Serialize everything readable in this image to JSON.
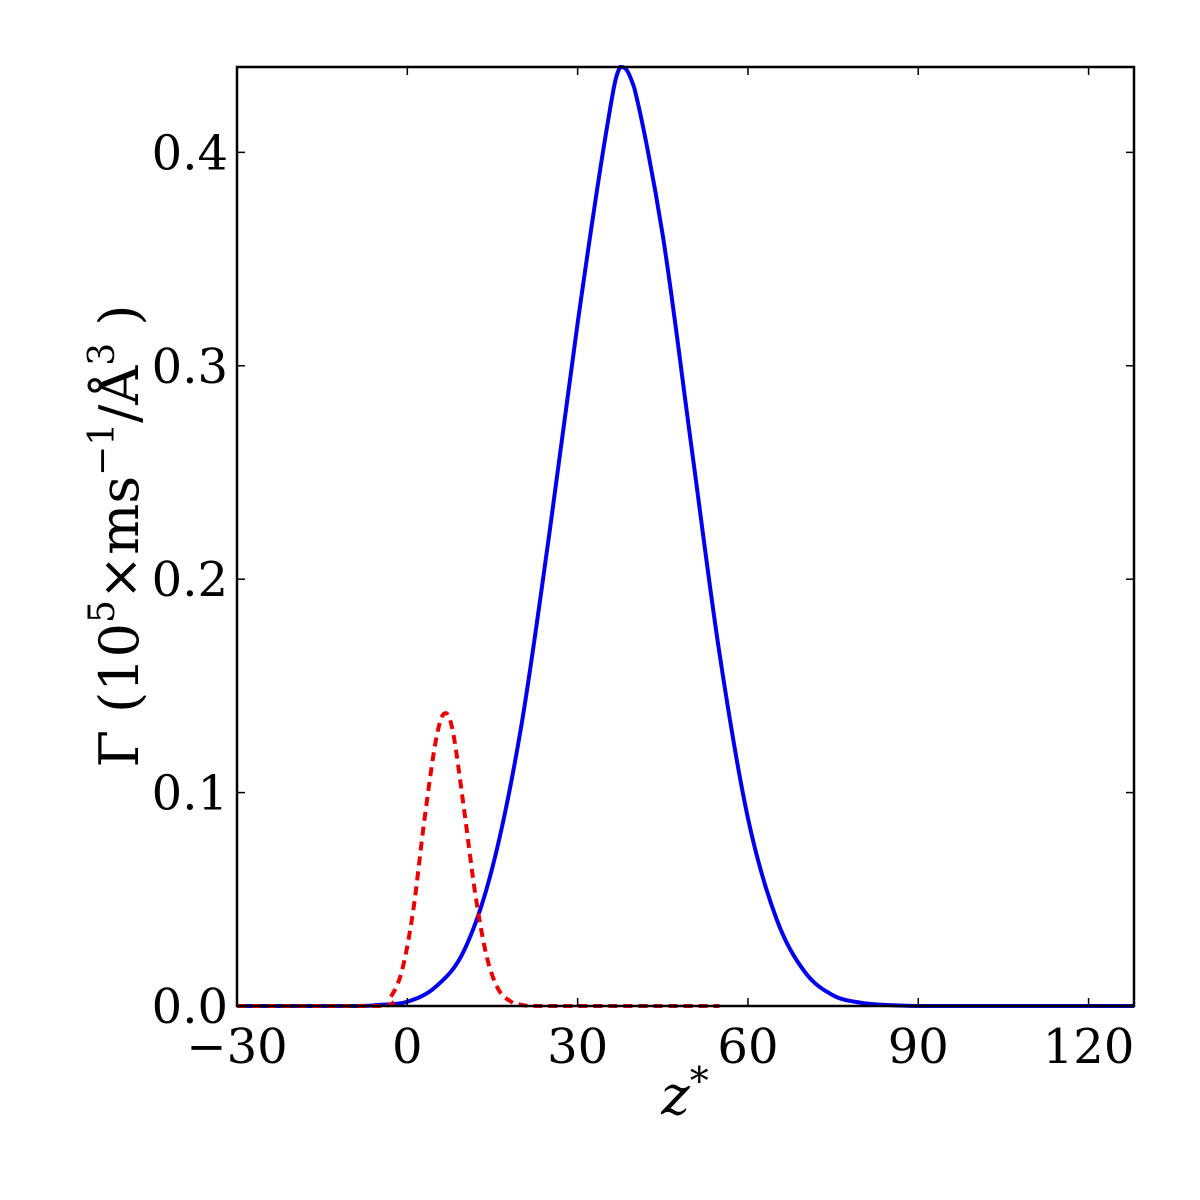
{
  "chart_data": {
    "type": "line",
    "xlabel": {
      "base": "z",
      "sup": "*"
    },
    "ylabel": {
      "prefix": "Γ (10",
      "sup1": "5",
      "mid": "×ms",
      "sup2": "−1",
      "mid2": "/Å",
      "sup3": "3",
      "suffix": " )"
    },
    "xlim": [
      -30,
      128
    ],
    "ylim": [
      0,
      0.44
    ],
    "xticks": [
      -30,
      0,
      30,
      60,
      90,
      120
    ],
    "xtick_labels": [
      "−30",
      "0",
      "30",
      "60",
      "90",
      "120"
    ],
    "yticks": [
      0.0,
      0.1,
      0.2,
      0.3,
      0.4
    ],
    "ytick_labels": [
      "0.0",
      "0.1",
      "0.2",
      "0.3",
      "0.4"
    ],
    "grid": false,
    "series": [
      {
        "style": "solid",
        "color": "#0000ee",
        "x": [
          -30,
          -10,
          -5,
          0,
          5,
          10,
          15,
          20,
          25,
          30,
          35,
          37.5,
          40,
          45,
          50,
          55,
          60,
          65,
          70,
          75,
          80,
          85,
          90,
          100,
          110,
          128
        ],
        "y": [
          0.0,
          0.0,
          0.0005,
          0.002,
          0.009,
          0.026,
          0.065,
          0.13,
          0.221,
          0.32,
          0.409,
          0.44,
          0.43,
          0.361,
          0.263,
          0.165,
          0.088,
          0.041,
          0.016,
          0.005,
          0.0015,
          0.0004,
          0.0,
          0.0,
          0.0,
          0.0
        ]
      },
      {
        "style": "dashed",
        "color": "#ee0000",
        "x": [
          -30,
          -5,
          -3,
          -1,
          1,
          3,
          5,
          6.5,
          8,
          10,
          12,
          14,
          16,
          18,
          20,
          25,
          55
        ],
        "y": [
          0.0,
          0.0,
          0.004,
          0.016,
          0.044,
          0.087,
          0.124,
          0.137,
          0.129,
          0.092,
          0.052,
          0.023,
          0.008,
          0.0025,
          0.0006,
          0.0,
          0.0
        ]
      }
    ]
  }
}
